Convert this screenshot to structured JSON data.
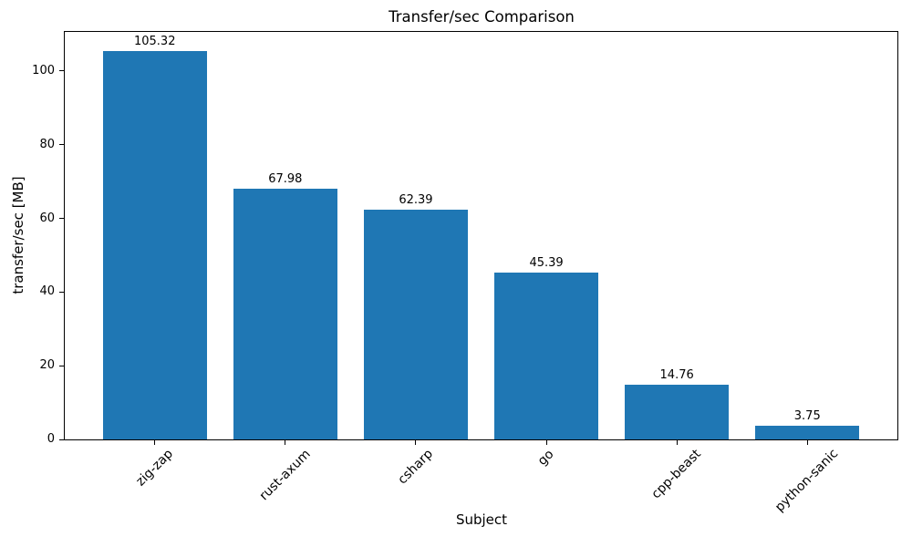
{
  "chart_data": {
    "type": "bar",
    "title": "Transfer/sec Comparison",
    "xlabel": "Subject",
    "ylabel": "transfer/sec [MB]",
    "categories": [
      "zig-zap",
      "rust-axum",
      "csharp",
      "go",
      "cpp-beast",
      "python-sanic"
    ],
    "values": [
      105.32,
      67.98,
      62.39,
      45.39,
      14.76,
      3.75
    ],
    "bar_labels": [
      "105.32",
      "67.98",
      "62.39",
      "45.39",
      "14.76",
      "3.75"
    ],
    "yticks": [
      0,
      20,
      40,
      60,
      80,
      100
    ],
    "ylim": [
      0,
      110.6
    ],
    "xlim": [
      -0.69,
      5.69
    ],
    "bar_width": 0.8,
    "bar_color": "#1f77b4",
    "axis_color": "#000000",
    "text_color": "#000000",
    "background_color": "#ffffff",
    "grid": false,
    "legend": "none",
    "xtick_rotation": 45
  }
}
